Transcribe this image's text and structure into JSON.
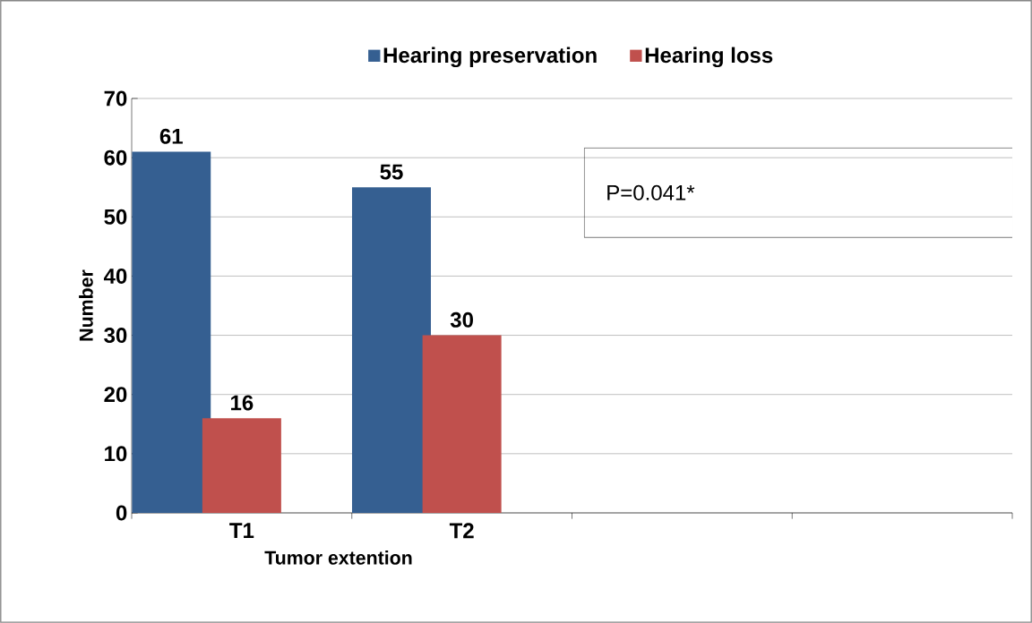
{
  "chart_data": {
    "type": "bar",
    "xlabel": "Tumor extention",
    "ylabel": "Number",
    "categories": [
      "T1",
      "T2",
      null,
      null
    ],
    "series": [
      {
        "name": "Hearing preservation",
        "color": "#355f91",
        "values": [
          61,
          55,
          null,
          null
        ]
      },
      {
        "name": "Hearing loss",
        "color": "#c0504d",
        "values": [
          16,
          30,
          null,
          null
        ]
      }
    ],
    "ylim": [
      0,
      70
    ],
    "yticks": [
      0,
      10,
      20,
      30,
      40,
      50,
      60,
      70
    ],
    "grid": "y",
    "legend": "top",
    "data_labels": true,
    "annotations": [
      "P=0.041*"
    ]
  }
}
